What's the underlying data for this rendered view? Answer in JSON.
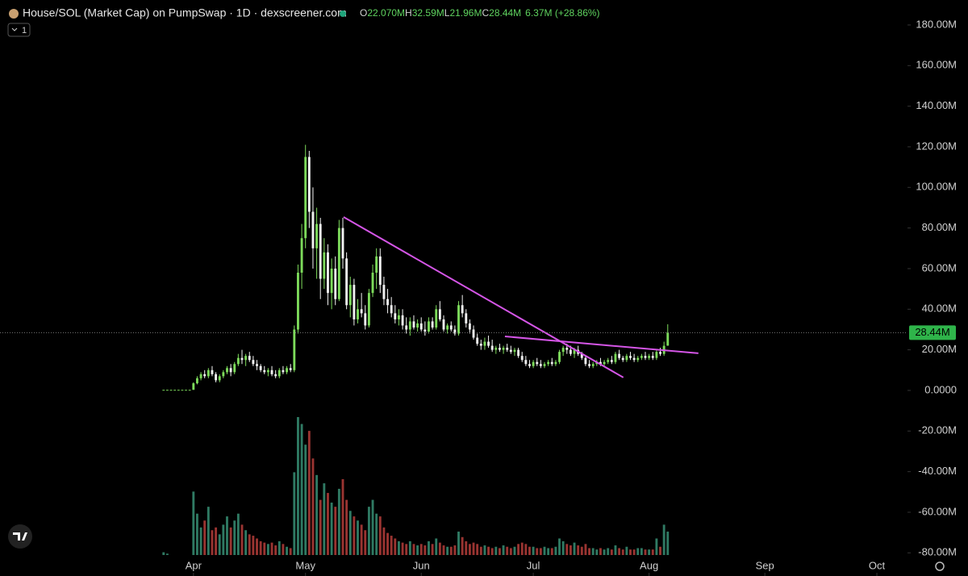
{
  "chart_data": {
    "type": "candlestick",
    "title": "House/SOL (Market Cap) on PumpSwap · 1D · dexscreener.com",
    "ohlc_header": [
      {
        "key": "O",
        "value": "22.070M"
      },
      {
        "key": "H",
        "value": "32.59M"
      },
      {
        "key": "L",
        "value": "21.96M"
      },
      {
        "key": "C",
        "value": "28.44M"
      }
    ],
    "change": "6.37M (+28.86%)",
    "interval_button": "1",
    "x": [
      0,
      1,
      2,
      3,
      4,
      5,
      6,
      7,
      8,
      9,
      10,
      11,
      12,
      13,
      14,
      15,
      16,
      17,
      18,
      19,
      20,
      21,
      22,
      23,
      24,
      25,
      26,
      27,
      28,
      29,
      30,
      31,
      32,
      33,
      34,
      35,
      36,
      37,
      38,
      39,
      40,
      41,
      42,
      43,
      44,
      45,
      46,
      47,
      48,
      49,
      50,
      51,
      52,
      53,
      54,
      55,
      56,
      57,
      58,
      59,
      60,
      61,
      62,
      63,
      64,
      65,
      66,
      67,
      68,
      69,
      70,
      71,
      72,
      73,
      74,
      75,
      76,
      77,
      78,
      79,
      80,
      81,
      82,
      83,
      84,
      85,
      86,
      87,
      88,
      89,
      90,
      91,
      92,
      93,
      94,
      95,
      96,
      97,
      98,
      99,
      100,
      101,
      102,
      103,
      104,
      105,
      106,
      107,
      108,
      109,
      110,
      111,
      112,
      113,
      114,
      115,
      116,
      117,
      118,
      119,
      120,
      121,
      122,
      123,
      124,
      125,
      126,
      127,
      128,
      129,
      130,
      131,
      132,
      133,
      134,
      135
    ],
    "open": [
      0.3,
      0.3,
      0.3,
      0.3,
      0.3,
      0.3,
      0.3,
      0.3,
      0.3,
      3.5,
      6,
      8,
      7,
      10,
      8,
      5,
      7,
      9,
      11,
      9,
      13,
      16,
      15,
      17,
      15,
      13,
      12,
      10,
      9,
      10,
      8,
      7,
      10,
      9,
      11,
      10,
      30,
      58,
      75,
      115,
      88,
      70,
      82,
      55,
      68,
      48,
      60,
      45,
      80,
      65,
      42,
      52,
      35,
      40,
      38,
      32,
      48,
      58,
      66,
      52,
      45,
      42,
      38,
      35,
      37,
      32,
      30,
      34,
      31,
      33,
      30,
      29,
      34,
      31,
      40,
      35,
      30,
      32,
      30,
      28,
      42,
      38,
      33,
      30,
      26,
      23,
      22,
      24,
      22,
      20,
      21,
      20,
      21,
      20,
      19,
      20,
      17,
      15,
      13,
      12,
      14,
      13,
      12,
      13,
      14,
      13,
      14,
      19,
      21,
      20,
      18,
      20,
      18,
      16,
      13,
      12,
      13,
      14,
      13,
      14,
      15,
      14,
      18,
      16,
      15,
      17,
      16,
      15,
      16,
      17,
      16,
      17,
      16,
      19,
      18,
      22.07
    ],
    "high": [
      0.3,
      0.3,
      0.3,
      0.3,
      0.3,
      0.3,
      0.3,
      0.3,
      4,
      7,
      9,
      10,
      11,
      12,
      9,
      8,
      10,
      12,
      13,
      14,
      18,
      20,
      18,
      19,
      17,
      15,
      13,
      12,
      11,
      12,
      10,
      11,
      12,
      12,
      13,
      32,
      62,
      82,
      121,
      118,
      100,
      90,
      85,
      75,
      72,
      65,
      66,
      84,
      85,
      68,
      56,
      55,
      45,
      48,
      42,
      50,
      62,
      70,
      70,
      56,
      50,
      46,
      42,
      40,
      40,
      36,
      36,
      37,
      35,
      36,
      34,
      36,
      36,
      42,
      44,
      37,
      33,
      34,
      32,
      44,
      47,
      40,
      35,
      32,
      28,
      25,
      26,
      27,
      25,
      22,
      23,
      22,
      23,
      22,
      21,
      21,
      19,
      17,
      15,
      15,
      16,
      15,
      14,
      15,
      16,
      15,
      20,
      22,
      23,
      22,
      21,
      22,
      19,
      17,
      15,
      14,
      15,
      16,
      15,
      16,
      17,
      19,
      20,
      17,
      18,
      19,
      18,
      17,
      18,
      19,
      18,
      19,
      20,
      21,
      24,
      32.59
    ],
    "low": [
      0.3,
      0.3,
      0.3,
      0.3,
      0.3,
      0.3,
      0.3,
      0.3,
      0.3,
      3,
      5,
      6,
      6,
      7,
      4,
      4,
      6,
      8,
      7,
      8,
      12,
      13,
      12,
      14,
      12,
      10,
      9,
      8,
      7,
      7,
      6,
      6,
      8,
      8,
      9,
      9,
      28,
      50,
      70,
      80,
      60,
      55,
      45,
      50,
      42,
      40,
      42,
      44,
      60,
      40,
      36,
      32,
      33,
      36,
      30,
      31,
      46,
      50,
      48,
      42,
      38,
      36,
      33,
      32,
      30,
      28,
      27,
      30,
      29,
      29,
      27,
      28,
      30,
      30,
      34,
      29,
      28,
      29,
      27,
      27,
      36,
      31,
      28,
      25,
      22,
      20,
      20,
      21,
      19,
      18,
      19,
      18,
      19,
      18,
      17,
      16,
      14,
      12,
      11,
      11,
      12,
      11,
      11,
      12,
      12,
      12,
      13,
      17,
      18,
      17,
      16,
      17,
      15,
      12,
      11,
      11,
      12,
      12,
      12,
      13,
      13,
      13,
      15,
      14,
      14,
      15,
      14,
      14,
      15,
      15,
      15,
      15,
      15,
      17,
      17,
      21.96
    ],
    "close": [
      0.3,
      0.3,
      0.3,
      0.3,
      0.3,
      0.3,
      0.3,
      0.3,
      3.5,
      6,
      8,
      7,
      10,
      8,
      5,
      7,
      9,
      11,
      9,
      13,
      16,
      15,
      17,
      15,
      13,
      12,
      10,
      9,
      10,
      8,
      7,
      10,
      9,
      11,
      10,
      30,
      58,
      75,
      115,
      88,
      70,
      82,
      55,
      68,
      48,
      60,
      45,
      80,
      65,
      42,
      52,
      35,
      40,
      38,
      32,
      48,
      58,
      66,
      52,
      45,
      42,
      38,
      35,
      37,
      32,
      30,
      34,
      31,
      33,
      30,
      29,
      34,
      31,
      40,
      35,
      30,
      32,
      30,
      28,
      42,
      38,
      33,
      30,
      26,
      23,
      22,
      24,
      22,
      20,
      21,
      20,
      21,
      20,
      19,
      20,
      17,
      15,
      13,
      12,
      14,
      13,
      12,
      13,
      14,
      13,
      14,
      19,
      21,
      20,
      18,
      20,
      18,
      16,
      13,
      12,
      13,
      14,
      13,
      14,
      15,
      14,
      18,
      16,
      15,
      17,
      16,
      15,
      16,
      17,
      16,
      17,
      16,
      19,
      18,
      22,
      28.44
    ],
    "volume": [
      2,
      1,
      0,
      0,
      0,
      0,
      0,
      0,
      46,
      30,
      20,
      25,
      35,
      18,
      20,
      15,
      22,
      28,
      20,
      25,
      30,
      22,
      18,
      15,
      14,
      12,
      10,
      9,
      8,
      9,
      7,
      10,
      8,
      6,
      5,
      60,
      100,
      95,
      80,
      90,
      70,
      58,
      40,
      52,
      45,
      38,
      35,
      48,
      55,
      40,
      32,
      28,
      25,
      22,
      18,
      35,
      40,
      30,
      28,
      20,
      16,
      14,
      12,
      10,
      9,
      8,
      10,
      8,
      7,
      8,
      7,
      10,
      8,
      12,
      9,
      7,
      6,
      6,
      7,
      17,
      13,
      10,
      8,
      9,
      8,
      6,
      7,
      6,
      5,
      6,
      5,
      7,
      6,
      5,
      6,
      8,
      9,
      8,
      6,
      6,
      5,
      5,
      6,
      5,
      5,
      6,
      12,
      10,
      8,
      7,
      9,
      7,
      6,
      8,
      5,
      5,
      4,
      5,
      4,
      5,
      4,
      7,
      5,
      4,
      6,
      4,
      4,
      5,
      5,
      4,
      4,
      4,
      12,
      6,
      22,
      17
    ],
    "volume_lim": [
      0,
      100
    ],
    "up_color": "#7ddb5b",
    "down_color": "#f2f2f2",
    "volume_up_color": "#2f7a63",
    "volume_down_color": "#9a3431",
    "xlim": [
      -43.8,
      199.2
    ],
    "xticks": [
      {
        "value": 8,
        "label": "Apr"
      },
      {
        "value": 38,
        "label": "May"
      },
      {
        "value": 69,
        "label": "Jun"
      },
      {
        "value": 99,
        "label": "Jul"
      },
      {
        "value": 130,
        "label": "Aug"
      },
      {
        "value": 161,
        "label": "Sep"
      },
      {
        "value": 191,
        "label": "Oct"
      }
    ],
    "ylim": [
      -91.4,
      192.3
    ],
    "yticks": [
      {
        "value": 180,
        "label": "180.00M"
      },
      {
        "value": 160,
        "label": "160.00M"
      },
      {
        "value": 140,
        "label": "140.00M"
      },
      {
        "value": 120,
        "label": "120.00M"
      },
      {
        "value": 100,
        "label": "100.00M"
      },
      {
        "value": 80,
        "label": "80.00M"
      },
      {
        "value": 60,
        "label": "60.00M"
      },
      {
        "value": 40,
        "label": "40.00M"
      },
      {
        "value": 20,
        "label": "20.00M"
      },
      {
        "value": 0,
        "label": "0.0000"
      },
      {
        "value": -20,
        "label": "-20.00M"
      },
      {
        "value": -40,
        "label": "-40.00M"
      },
      {
        "value": -60,
        "label": "-60.00M"
      },
      {
        "value": -80,
        "label": "-80.00M"
      }
    ],
    "last_price": {
      "value": 28.44,
      "label": "28.44M"
    },
    "trend_lines": [
      {
        "color": "#d455e6",
        "x": [
          48.2,
          123.1
        ],
        "y": [
          85.4,
          6.4
        ]
      },
      {
        "color": "#d455e6",
        "x": [
          91.4,
          143.2
        ],
        "y": [
          26.6,
          18.3
        ]
      }
    ]
  }
}
